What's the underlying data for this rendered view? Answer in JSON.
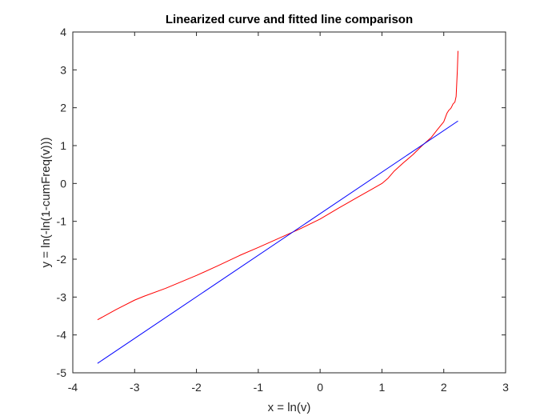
{
  "chart_data": {
    "type": "line",
    "title": "Linearized curve and fitted line comparison",
    "xlabel": "x = ln(v)",
    "ylabel": "y = ln(-ln(1-cumFreq(v)))",
    "xlim": [
      -4,
      3
    ],
    "ylim": [
      -5,
      4
    ],
    "xticks": [
      -4,
      -3,
      -2,
      -1,
      0,
      1,
      2,
      3
    ],
    "yticks": [
      -5,
      -4,
      -3,
      -2,
      -1,
      0,
      1,
      2,
      3,
      4
    ],
    "xtick_labels": [
      "-4",
      "-3",
      "-2",
      "-1",
      "0",
      "1",
      "2",
      "3"
    ],
    "ytick_labels": [
      "-5",
      "-4",
      "-3",
      "-2",
      "-1",
      "0",
      "1",
      "2",
      "3",
      "4"
    ],
    "grid": false,
    "legend": null,
    "series": [
      {
        "color": "#ff0000",
        "x": [
          -3.6,
          -3.3,
          -3.0,
          -2.85,
          -2.5,
          -2.0,
          -1.65,
          -1.3,
          -1.0,
          -0.6,
          -0.3,
          0.0,
          0.3,
          0.6,
          0.85,
          1.0,
          1.1,
          1.2,
          1.35,
          1.5,
          1.65,
          1.8,
          1.9,
          2.0,
          2.05,
          2.08,
          2.1,
          2.12,
          2.15,
          2.18,
          2.2,
          2.22,
          2.23
        ],
        "y": [
          -3.6,
          -3.33,
          -3.08,
          -2.98,
          -2.77,
          -2.43,
          -2.17,
          -1.9,
          -1.69,
          -1.4,
          -1.18,
          -0.94,
          -0.65,
          -0.37,
          -0.14,
          0.0,
          0.14,
          0.33,
          0.55,
          0.76,
          1.0,
          1.22,
          1.43,
          1.63,
          1.85,
          1.93,
          1.96,
          2.0,
          2.1,
          2.15,
          2.3,
          3.0,
          3.5
        ]
      },
      {
        "color": "#0000ff",
        "x": [
          -3.6,
          2.23
        ],
        "y": [
          -4.75,
          1.65
        ]
      }
    ]
  }
}
